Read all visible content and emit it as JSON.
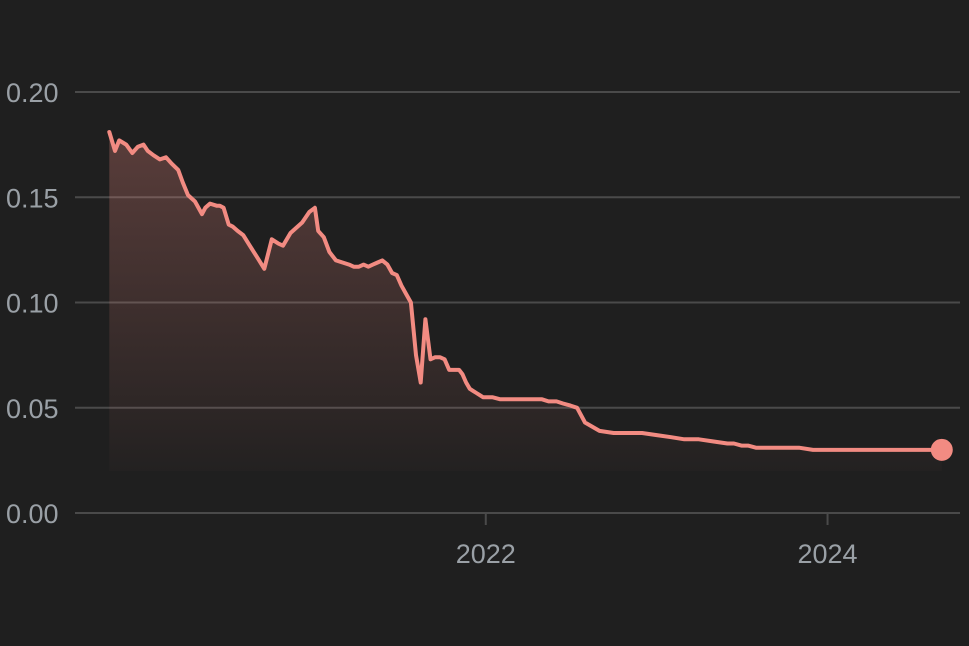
{
  "chart_data": {
    "type": "area",
    "title": "",
    "xlabel": "",
    "ylabel": "",
    "ylim": [
      0,
      0.2
    ],
    "xlim": [
      "2019-10-15",
      "2024-09-10"
    ],
    "grid": true,
    "legend": "none",
    "y_ticks": [
      {
        "value": 0.2,
        "label": "0.20"
      },
      {
        "value": 0.15,
        "label": "0.15"
      },
      {
        "value": 0.1,
        "label": "0.10"
      },
      {
        "value": 0.05,
        "label": "0.05"
      },
      {
        "value": 0.0,
        "label": "0.00"
      }
    ],
    "x_ticks": [
      {
        "date": "2022-01-01",
        "label": "2022"
      },
      {
        "date": "2024-01-01",
        "label": "2024"
      }
    ],
    "colors": {
      "background": "#1f1f1f",
      "line": "#f28b82",
      "fill": "#f28b82",
      "text": "#9aa0a6",
      "grid": "#4a4a4a"
    },
    "series": [
      {
        "x": [
          "2019-10-20",
          "2019-11-01",
          "2019-11-10",
          "2019-11-25",
          "2019-12-08",
          "2019-12-20",
          "2020-01-01",
          "2020-01-10",
          "2020-01-22",
          "2020-02-05",
          "2020-02-18",
          "2020-03-01",
          "2020-03-15",
          "2020-03-25",
          "2020-04-05",
          "2020-04-20",
          "2020-05-05",
          "2020-05-12",
          "2020-05-22",
          "2020-06-05",
          "2020-06-12",
          "2020-06-20",
          "2020-07-01",
          "2020-07-10",
          "2020-07-20",
          "2020-08-01",
          "2020-08-15",
          "2020-09-01",
          "2020-09-15",
          "2020-10-01",
          "2020-10-15",
          "2020-10-25",
          "2020-11-10",
          "2020-11-20",
          "2020-12-05",
          "2020-12-20",
          "2021-01-01",
          "2021-01-08",
          "2021-01-20",
          "2021-02-01",
          "2021-02-15",
          "2021-03-01",
          "2021-03-15",
          "2021-03-25",
          "2021-04-05",
          "2021-04-15",
          "2021-04-25",
          "2021-05-05",
          "2021-05-15",
          "2021-05-25",
          "2021-06-05",
          "2021-06-15",
          "2021-06-25",
          "2021-07-05",
          "2021-07-15",
          "2021-07-25",
          "2021-08-05",
          "2021-08-15",
          "2021-08-25",
          "2021-09-05",
          "2021-09-15",
          "2021-09-25",
          "2021-10-05",
          "2021-10-15",
          "2021-10-25",
          "2021-11-05",
          "2021-11-12",
          "2021-11-20",
          "2021-11-28",
          "2021-12-05",
          "2021-12-12",
          "2021-12-19",
          "2021-12-26",
          "2022-01-05",
          "2022-01-15",
          "2022-02-01",
          "2022-02-15",
          "2022-03-01",
          "2022-03-15",
          "2022-04-01",
          "2022-04-15",
          "2022-05-01",
          "2022-05-15",
          "2022-06-01",
          "2022-06-15",
          "2022-07-01",
          "2022-07-15",
          "2022-08-01",
          "2022-09-01",
          "2022-10-01",
          "2022-11-01",
          "2022-12-01",
          "2023-01-01",
          "2023-02-01",
          "2023-03-01",
          "2023-04-01",
          "2023-05-01",
          "2023-06-01",
          "2023-06-15",
          "2023-07-01",
          "2023-07-15",
          "2023-08-01",
          "2023-08-15",
          "2023-09-01",
          "2023-10-01",
          "2023-11-01",
          "2023-12-01",
          "2024-01-01",
          "2024-02-01",
          "2024-03-01",
          "2024-04-01",
          "2024-05-01",
          "2024-06-01",
          "2024-07-01",
          "2024-08-01",
          "2024-09-01"
        ],
        "y": [
          0.181,
          0.172,
          0.177,
          0.175,
          0.171,
          0.174,
          0.175,
          0.172,
          0.17,
          0.168,
          0.169,
          0.166,
          0.163,
          0.157,
          0.151,
          0.148,
          0.142,
          0.145,
          0.147,
          0.146,
          0.146,
          0.145,
          0.137,
          0.136,
          0.134,
          0.132,
          0.127,
          0.121,
          0.116,
          0.13,
          0.128,
          0.127,
          0.133,
          0.135,
          0.138,
          0.143,
          0.145,
          0.134,
          0.131,
          0.124,
          0.12,
          0.119,
          0.118,
          0.117,
          0.117,
          0.118,
          0.117,
          0.118,
          0.119,
          0.12,
          0.118,
          0.114,
          0.113,
          0.108,
          0.104,
          0.1,
          0.075,
          0.062,
          0.092,
          0.073,
          0.074,
          0.074,
          0.073,
          0.068,
          0.068,
          0.068,
          0.066,
          0.062,
          0.059,
          0.058,
          0.057,
          0.056,
          0.055,
          0.055,
          0.055,
          0.054,
          0.054,
          0.054,
          0.054,
          0.054,
          0.054,
          0.054,
          0.053,
          0.053,
          0.052,
          0.051,
          0.05,
          0.043,
          0.039,
          0.038,
          0.038,
          0.038,
          0.037,
          0.036,
          0.035,
          0.035,
          0.034,
          0.033,
          0.033,
          0.032,
          0.032,
          0.031,
          0.031,
          0.031,
          0.031,
          0.031,
          0.03,
          0.03,
          0.03,
          0.03,
          0.03,
          0.03,
          0.03,
          0.03,
          0.03,
          0.03
        ]
      }
    ]
  }
}
